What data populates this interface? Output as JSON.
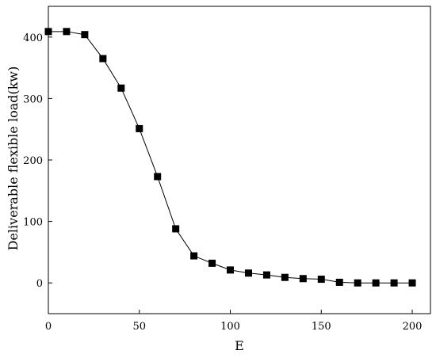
{
  "chart_data": {
    "type": "line",
    "xlabel": "E",
    "ylabel": "Deliverable flexible load(kw)",
    "xlim": [
      0,
      210
    ],
    "ylim": [
      -50,
      450
    ],
    "xticks": [
      0,
      50,
      100,
      150,
      200
    ],
    "yticks": [
      0,
      100,
      200,
      300,
      400
    ],
    "grid": false,
    "marker": "square",
    "series": [
      {
        "x": [
          0,
          10,
          20,
          30,
          40,
          50,
          60,
          70,
          80,
          90,
          100,
          110,
          120,
          130,
          140,
          150,
          160,
          170,
          180,
          190,
          200
        ],
        "y": [
          409,
          409,
          404,
          365,
          317,
          251,
          173,
          88,
          44,
          32,
          21,
          16,
          13,
          9,
          7,
          6,
          1,
          0,
          0,
          0,
          0
        ]
      }
    ],
    "colors": {
      "line": "#000000",
      "marker": "#000000",
      "axis": "#000000"
    }
  }
}
